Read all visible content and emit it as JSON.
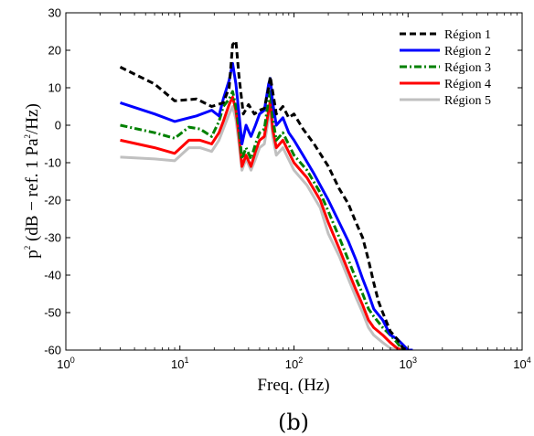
{
  "chart_data": {
    "type": "line",
    "xscale": "log",
    "xlim": [
      1,
      10000
    ],
    "ylim": [
      -60,
      30
    ],
    "grid": false,
    "legend_position": "top-right",
    "xlabel": "Freq. (Hz)",
    "ylabel": "p^2 (dB − ref. 1 Pa^2/Hz)",
    "ylabel_parts": {
      "p": "p",
      "p_exp": "2",
      "mid": " (dB − ref. 1 Pa",
      "pa_exp": "2",
      "end": "/Hz)"
    },
    "caption": "(b)",
    "xticks": [
      {
        "value": 1,
        "base": "10",
        "exp": "0"
      },
      {
        "value": 10,
        "base": "10",
        "exp": "1"
      },
      {
        "value": 100,
        "base": "10",
        "exp": "2"
      },
      {
        "value": 1000,
        "base": "10",
        "exp": "3"
      },
      {
        "value": 10000,
        "base": "10",
        "exp": "4"
      }
    ],
    "yticks": [
      30,
      20,
      10,
      0,
      -10,
      -20,
      -30,
      -40,
      -50,
      -60
    ],
    "series": [
      {
        "name": "Région 1",
        "color": "#000000",
        "style": "dashed",
        "x": [
          3,
          6,
          9,
          14,
          19,
          24,
          27,
          29,
          31,
          33,
          36,
          40,
          45,
          50,
          55,
          60,
          62,
          65,
          70,
          80,
          90,
          100,
          120,
          150,
          200,
          250,
          300,
          350,
          400,
          450,
          500,
          550,
          600,
          700,
          800,
          900,
          1000
        ],
        "y": [
          15.5,
          11,
          6.5,
          7,
          5,
          6,
          10,
          21.5,
          22.5,
          13,
          3,
          5.5,
          3,
          4,
          4.5,
          10,
          13,
          9,
          3,
          5,
          2,
          3,
          -1,
          -5,
          -11,
          -17,
          -21,
          -26,
          -30,
          -36,
          -42,
          -47,
          -50,
          -55,
          -57,
          -59.5,
          -60
        ]
      },
      {
        "name": "Région 2",
        "color": "#0000ff",
        "style": "solid",
        "x": [
          3,
          6,
          9,
          14,
          19,
          22,
          24,
          27,
          29,
          31,
          33,
          35,
          38,
          42,
          46,
          50,
          55,
          60,
          62,
          65,
          70,
          80,
          90,
          100,
          120,
          150,
          200,
          250,
          300,
          350,
          400,
          450,
          500,
          600,
          700,
          800,
          900,
          1000,
          1100
        ],
        "y": [
          6,
          3,
          1,
          2.5,
          4,
          2.5,
          7,
          12,
          16.5,
          11,
          3,
          -5,
          0,
          -3,
          0,
          3,
          4,
          11,
          12.5,
          6,
          0,
          2,
          -2,
          -4,
          -8,
          -13,
          -20,
          -26,
          -31,
          -36,
          -41,
          -45,
          -49,
          -52,
          -56,
          -57,
          -58.5,
          -60,
          -60
        ]
      },
      {
        "name": "Région 3",
        "color": "#008000",
        "style": "dashdot",
        "x": [
          3,
          6,
          9,
          12,
          15,
          19,
          22,
          24,
          27,
          29,
          31,
          33,
          35,
          38,
          42,
          46,
          50,
          55,
          60,
          62,
          65,
          70,
          80,
          100,
          130,
          170,
          200,
          250,
          300,
          350,
          400,
          450,
          500,
          600,
          700,
          800,
          900
        ],
        "y": [
          0,
          -2,
          -3.5,
          -0.5,
          -1,
          -3,
          1,
          5,
          7,
          9,
          5,
          -1,
          -9,
          -6,
          -9,
          -5,
          -2,
          -1,
          7,
          9.5,
          2,
          -4,
          -2,
          -8,
          -12,
          -18,
          -23,
          -30,
          -36,
          -41,
          -45,
          -49,
          -51,
          -54,
          -56,
          -58,
          -60
        ]
      },
      {
        "name": "Région 4",
        "color": "#ff0000",
        "style": "solid",
        "x": [
          3,
          6,
          9,
          12,
          15,
          19,
          22,
          24,
          27,
          29,
          31,
          33,
          35,
          38,
          42,
          46,
          50,
          55,
          60,
          62,
          65,
          70,
          80,
          100,
          130,
          170,
          200,
          250,
          300,
          350,
          400,
          450,
          500,
          600,
          700,
          800,
          880
        ],
        "y": [
          -4,
          -6,
          -7.5,
          -4,
          -4,
          -5,
          -2,
          1,
          5.5,
          7.5,
          4,
          -3,
          -11,
          -8,
          -11,
          -7,
          -4,
          -3,
          4,
          6.5,
          -1,
          -6,
          -4,
          -10,
          -14,
          -20,
          -26,
          -33,
          -39,
          -44,
          -48,
          -52,
          -54,
          -56,
          -58,
          -59.5,
          -60
        ]
      },
      {
        "name": "Région 5",
        "color": "#c0c0c0",
        "style": "solid",
        "x": [
          3,
          6,
          9,
          12,
          15,
          19,
          22,
          24,
          27,
          29,
          31,
          33,
          35,
          38,
          42,
          46,
          50,
          55,
          60,
          62,
          65,
          70,
          80,
          100,
          130,
          170,
          200,
          250,
          300,
          350,
          400,
          450,
          500,
          600,
          700,
          800
        ],
        "y": [
          -8.5,
          -9,
          -9.5,
          -6,
          -6,
          -7,
          -4,
          -1,
          3,
          5,
          1.5,
          -5,
          -12,
          -9,
          -12,
          -9,
          -6,
          -5,
          2,
          4,
          -3,
          -8,
          -6,
          -12,
          -16,
          -22,
          -29,
          -35,
          -41,
          -46,
          -50,
          -54,
          -56,
          -58,
          -59.5,
          -60
        ]
      }
    ]
  }
}
